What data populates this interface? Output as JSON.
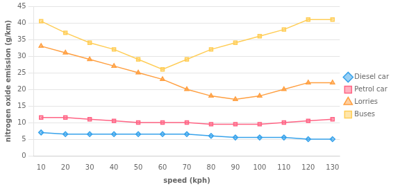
{
  "chart_data": {
    "type": "line",
    "x": [
      10,
      20,
      30,
      40,
      50,
      60,
      70,
      80,
      90,
      100,
      110,
      120,
      130
    ],
    "series": [
      {
        "name": "Diesel car",
        "marker": "diamond",
        "values": [
          7,
          6.5,
          6.5,
          6.5,
          6.5,
          6.5,
          6.5,
          6,
          5.5,
          5.5,
          5.5,
          5,
          5
        ]
      },
      {
        "name": "Petrol car",
        "marker": "square",
        "values": [
          11.5,
          11.5,
          11,
          10.5,
          10,
          10,
          10,
          9.5,
          9.5,
          9.5,
          10,
          10.5,
          11
        ]
      },
      {
        "name": "Lorries",
        "marker": "triangle",
        "values": [
          33,
          31,
          29,
          27,
          25,
          23,
          20,
          18,
          17,
          18,
          20,
          22,
          22
        ]
      },
      {
        "name": "Buses",
        "marker": "square",
        "values": [
          40.5,
          37,
          34,
          32,
          29,
          26,
          29,
          32,
          34,
          36,
          38,
          41,
          41
        ]
      }
    ],
    "xlabel": "speed (kph)",
    "ylabel": "nitrogen oxide emission (g/km)",
    "xlim": [
      7,
      133
    ],
    "xticks": [
      10,
      20,
      30,
      40,
      50,
      60,
      70,
      80,
      90,
      100,
      110,
      120,
      130
    ],
    "ylim": [
      0,
      45
    ],
    "yticks": [
      0,
      5,
      10,
      15,
      20,
      25,
      30,
      35,
      40,
      45
    ],
    "grid": "y",
    "legend": "right"
  }
}
